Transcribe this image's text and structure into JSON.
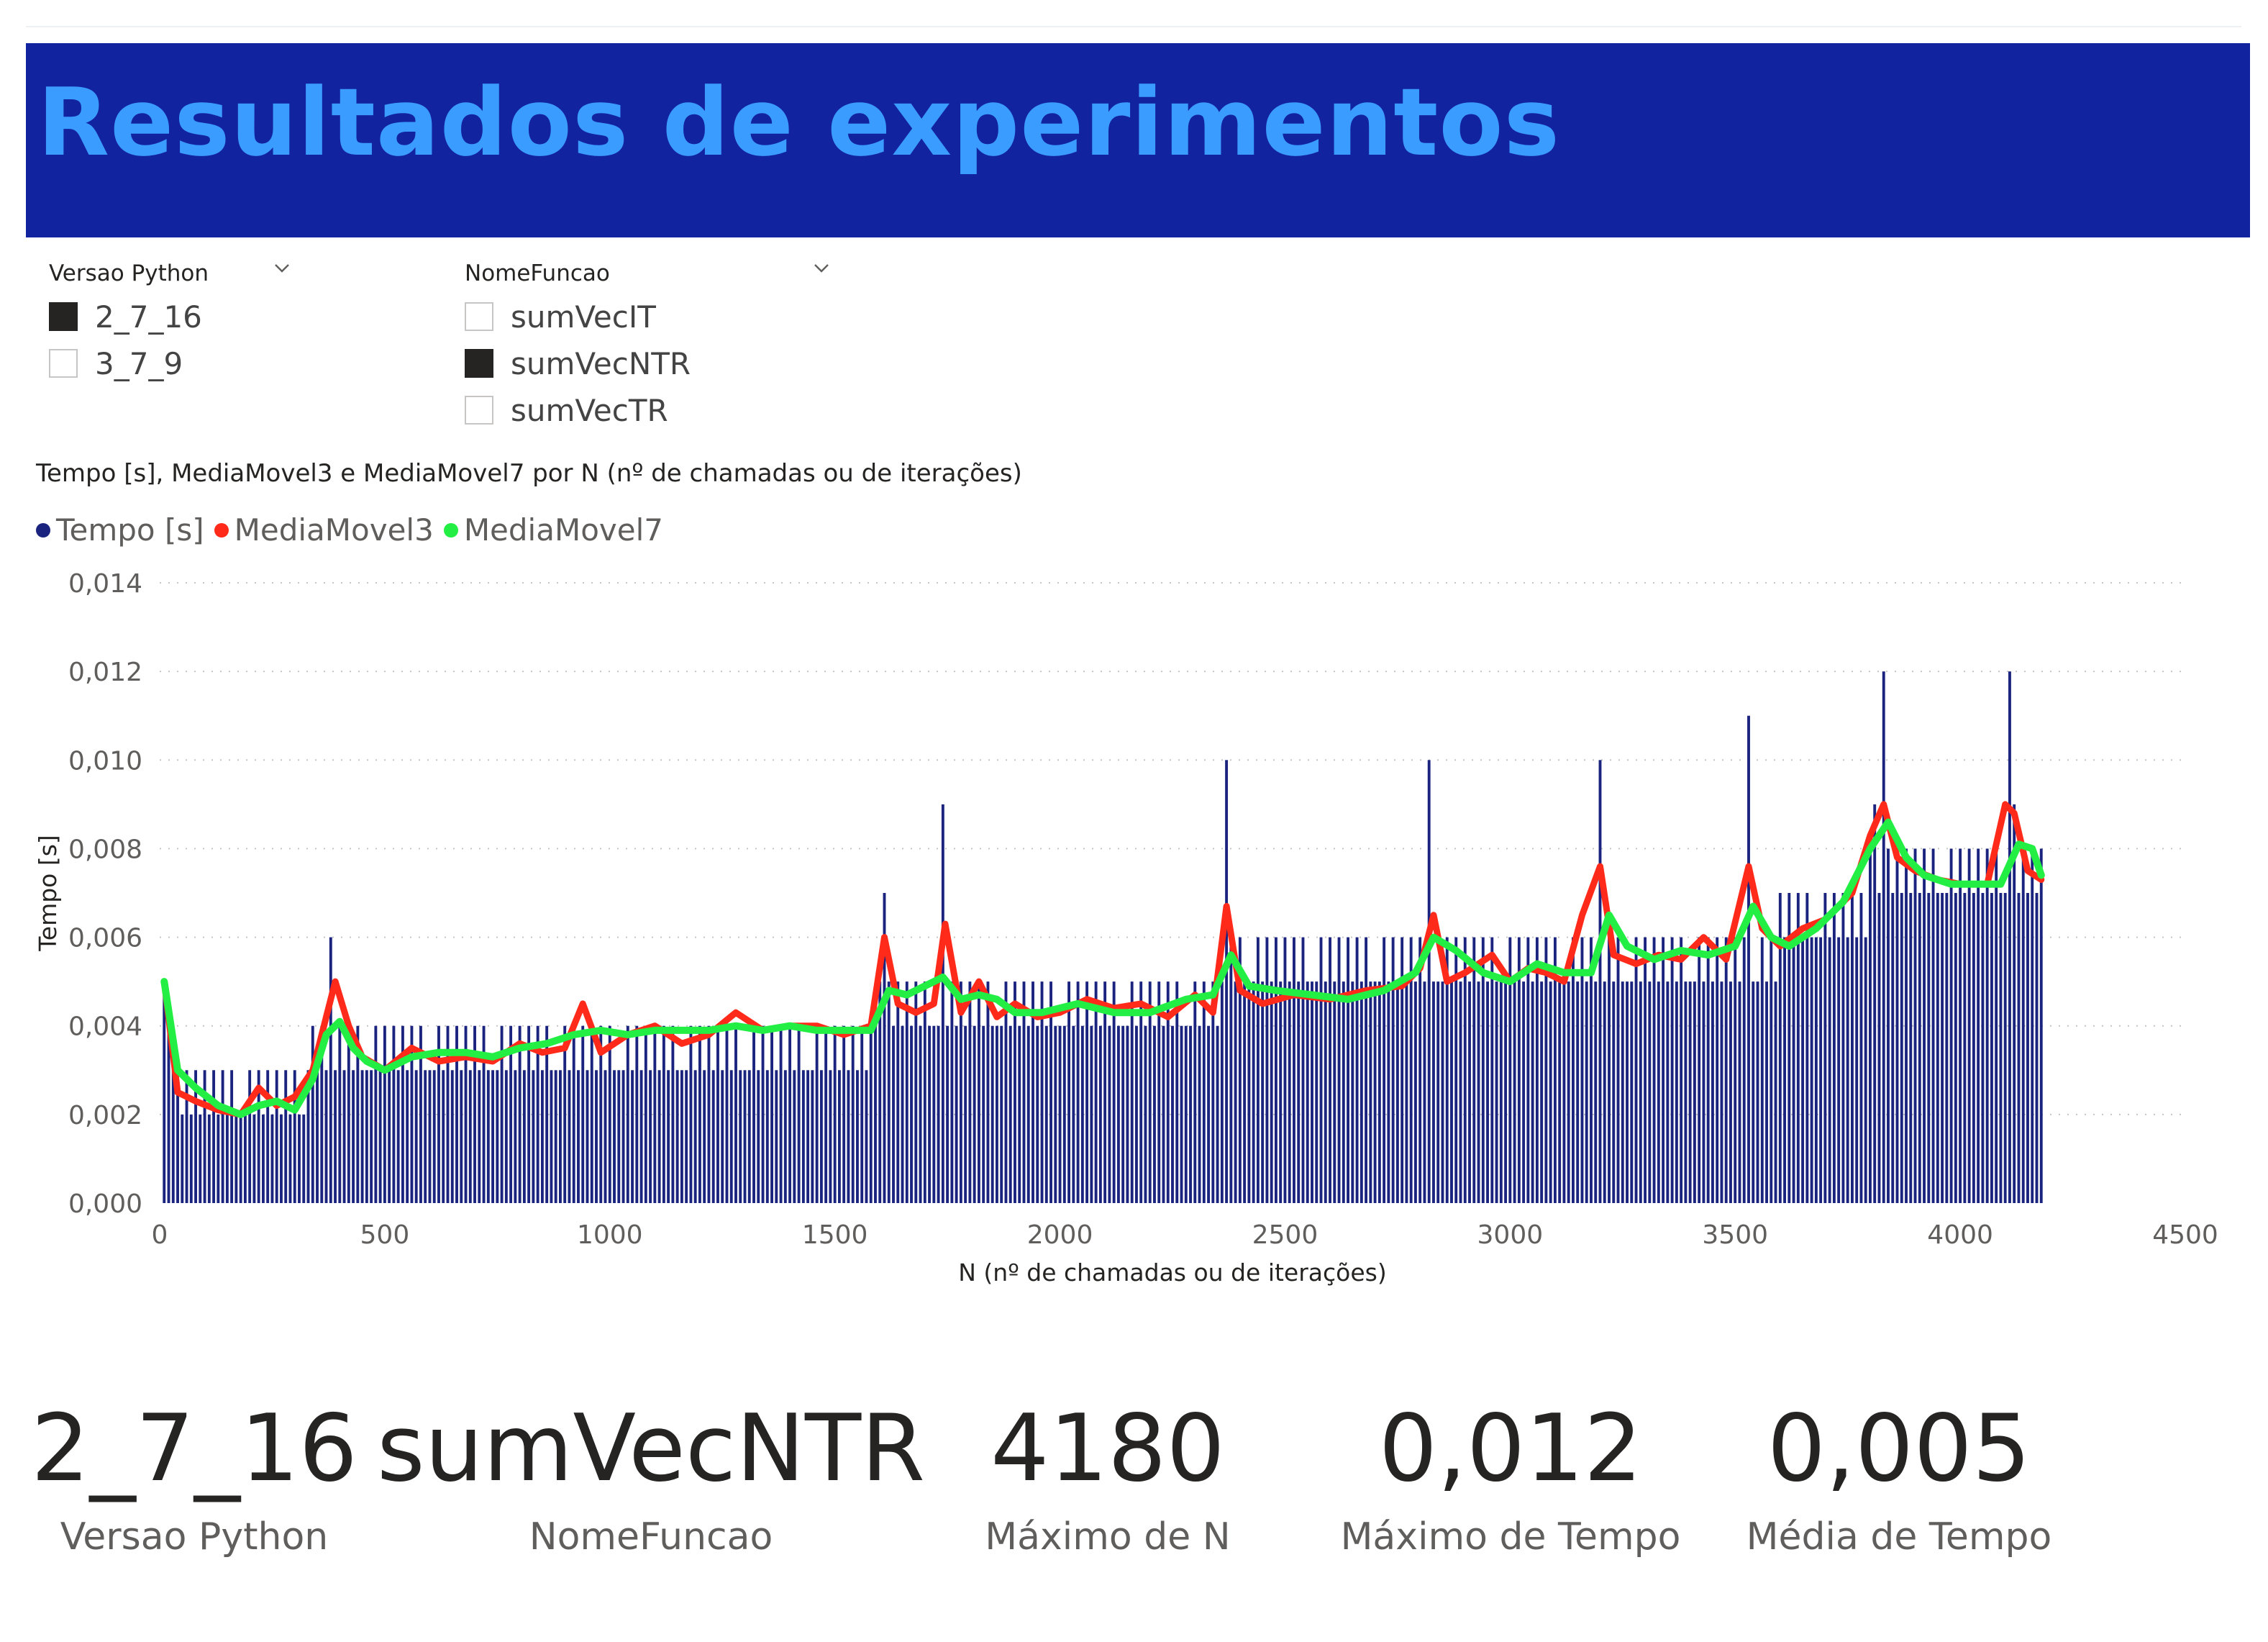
{
  "header": {
    "title": "Resultados de experimentos"
  },
  "slicers": {
    "versao": {
      "label": "Versao Python",
      "options": [
        {
          "label": "2_7_16",
          "checked": true
        },
        {
          "label": "3_7_9",
          "checked": false
        }
      ]
    },
    "funcao": {
      "label": "NomeFuncao",
      "options": [
        {
          "label": "sumVecIT",
          "checked": false
        },
        {
          "label": "sumVecNTR",
          "checked": true
        },
        {
          "label": "sumVecTR",
          "checked": false
        }
      ]
    }
  },
  "chart": {
    "title": "Tempo [s], MediaMovel3 e MediaMovel7 por N (nº de chamadas ou de iterações)",
    "legend": [
      {
        "label": "Tempo [s]",
        "color": "#1a237e"
      },
      {
        "label": "MediaMovel3",
        "color": "#ff2a1a"
      },
      {
        "label": "MediaMovel7",
        "color": "#22ee44"
      }
    ]
  },
  "chart_data": {
    "type": "bar",
    "title": "Tempo [s], MediaMovel3 e MediaMovel7 por N (nº de chamadas ou de iterações)",
    "xlabel": "N (nº de chamadas ou de iterações)",
    "ylabel": "Tempo [s]",
    "xlim": [
      0,
      4500
    ],
    "ylim": [
      0,
      0.014
    ],
    "x_ticks": [
      0,
      500,
      1000,
      1500,
      2000,
      2500,
      3000,
      3500,
      4000,
      4500
    ],
    "x_tick_labels": [
      "0",
      "500",
      "1000",
      "1500",
      "2000",
      "2500",
      "3000",
      "3500",
      "4000",
      "4500"
    ],
    "y_ticks": [
      0,
      0.002,
      0.004,
      0.006,
      0.008,
      0.01,
      0.012,
      0.014
    ],
    "y_tick_labels": [
      "0,000",
      "0,002",
      "0,004",
      "0,006",
      "0,008",
      "0,010",
      "0,012",
      "0,014"
    ],
    "grid": true,
    "legend_position": "top-left",
    "bars": {
      "name": "Tempo [s]",
      "color": "#1a237e",
      "x_start": 10,
      "x_step": 10,
      "count": 418,
      "baseline": [
        [
          10,
          0.003
        ],
        [
          50,
          0.002
        ],
        [
          300,
          0.002
        ],
        [
          330,
          0.003
        ],
        [
          1580,
          0.004
        ],
        [
          2350,
          0.004
        ],
        [
          2380,
          0.005
        ],
        [
          3550,
          0.005
        ],
        [
          3600,
          0.006
        ],
        [
          3800,
          0.007
        ],
        [
          4180,
          0.007
        ]
      ],
      "alternate_high": 0.001,
      "spikes": [
        [
          10,
          0.005
        ],
        [
          380,
          0.006
        ],
        [
          1610,
          0.007
        ],
        [
          1740,
          0.009
        ],
        [
          2370,
          0.01
        ],
        [
          2820,
          0.01
        ],
        [
          3200,
          0.01
        ],
        [
          3530,
          0.011
        ],
        [
          3830,
          0.012
        ],
        [
          4110,
          0.012
        ],
        [
          3810,
          0.009
        ],
        [
          4120,
          0.009
        ]
      ]
    },
    "series": [
      {
        "name": "MediaMovel3",
        "color": "#ff2a1a",
        "x": [
          10,
          40,
          80,
          130,
          180,
          220,
          260,
          300,
          340,
          370,
          390,
          420,
          450,
          500,
          560,
          620,
          680,
          740,
          800,
          850,
          900,
          940,
          980,
          1040,
          1100,
          1160,
          1220,
          1280,
          1340,
          1400,
          1460,
          1520,
          1580,
          1610,
          1640,
          1680,
          1720,
          1745,
          1780,
          1820,
          1860,
          1900,
          1950,
          2000,
          2060,
          2120,
          2180,
          2240,
          2300,
          2340,
          2370,
          2400,
          2450,
          2520,
          2600,
          2680,
          2760,
          2800,
          2830,
          2860,
          2900,
          2960,
          3000,
          3040,
          3080,
          3120,
          3160,
          3200,
          3230,
          3280,
          3330,
          3380,
          3430,
          3480,
          3530,
          3560,
          3600,
          3650,
          3700,
          3760,
          3800,
          3830,
          3860,
          3900,
          3950,
          4000,
          4060,
          4100,
          4120,
          4150,
          4180
        ],
        "y": [
          0.005,
          0.0025,
          0.0023,
          0.0021,
          0.002,
          0.0026,
          0.0022,
          0.0024,
          0.003,
          0.0042,
          0.005,
          0.004,
          0.0033,
          0.003,
          0.0035,
          0.0032,
          0.0033,
          0.0032,
          0.0036,
          0.0034,
          0.0035,
          0.0045,
          0.0034,
          0.0038,
          0.004,
          0.0036,
          0.0038,
          0.0043,
          0.0039,
          0.004,
          0.004,
          0.0038,
          0.004,
          0.006,
          0.0045,
          0.0043,
          0.0045,
          0.0063,
          0.0043,
          0.005,
          0.0042,
          0.0045,
          0.0042,
          0.0043,
          0.0046,
          0.0044,
          0.0045,
          0.0042,
          0.0047,
          0.0043,
          0.0067,
          0.0048,
          0.0045,
          0.0047,
          0.0046,
          0.0048,
          0.0049,
          0.0053,
          0.0065,
          0.005,
          0.0052,
          0.0056,
          0.005,
          0.0053,
          0.0052,
          0.005,
          0.0065,
          0.0076,
          0.0056,
          0.0054,
          0.0056,
          0.0055,
          0.006,
          0.0055,
          0.0076,
          0.0062,
          0.0058,
          0.0062,
          0.0064,
          0.007,
          0.0083,
          0.009,
          0.0078,
          0.0075,
          0.0073,
          0.0072,
          0.0072,
          0.009,
          0.0088,
          0.0075,
          0.0073
        ]
      },
      {
        "name": "MediaMovel7",
        "color": "#22ee44",
        "x": [
          10,
          40,
          80,
          130,
          180,
          220,
          260,
          300,
          340,
          370,
          400,
          430,
          460,
          500,
          560,
          620,
          680,
          740,
          800,
          860,
          920,
          980,
          1040,
          1100,
          1160,
          1220,
          1280,
          1340,
          1400,
          1460,
          1520,
          1580,
          1620,
          1660,
          1700,
          1740,
          1780,
          1820,
          1860,
          1900,
          1960,
          2040,
          2120,
          2200,
          2280,
          2340,
          2380,
          2420,
          2480,
          2560,
          2640,
          2720,
          2790,
          2830,
          2880,
          2940,
          3000,
          3060,
          3120,
          3180,
          3220,
          3260,
          3320,
          3380,
          3440,
          3500,
          3540,
          3580,
          3620,
          3680,
          3740,
          3800,
          3840,
          3880,
          3920,
          3980,
          4040,
          4090,
          4130,
          4160,
          4180
        ],
        "y": [
          0.005,
          0.003,
          0.0026,
          0.0022,
          0.002,
          0.0022,
          0.0023,
          0.0021,
          0.0028,
          0.0038,
          0.0041,
          0.0035,
          0.0032,
          0.003,
          0.0033,
          0.0034,
          0.0034,
          0.0033,
          0.0035,
          0.0036,
          0.0038,
          0.0039,
          0.0038,
          0.0039,
          0.0039,
          0.0039,
          0.004,
          0.0039,
          0.004,
          0.0039,
          0.0039,
          0.0039,
          0.0048,
          0.0047,
          0.0049,
          0.0051,
          0.0046,
          0.0047,
          0.0046,
          0.0043,
          0.0043,
          0.0045,
          0.0043,
          0.0043,
          0.0046,
          0.0047,
          0.0056,
          0.0049,
          0.0048,
          0.0047,
          0.0046,
          0.0048,
          0.0052,
          0.006,
          0.0057,
          0.0052,
          0.005,
          0.0054,
          0.0052,
          0.0052,
          0.0065,
          0.0058,
          0.0055,
          0.0057,
          0.0056,
          0.0058,
          0.0067,
          0.006,
          0.0058,
          0.0062,
          0.0068,
          0.008,
          0.0086,
          0.0078,
          0.0074,
          0.0072,
          0.0072,
          0.0072,
          0.0081,
          0.008,
          0.0074
        ]
      }
    ]
  },
  "kpis": [
    {
      "value": "2_7_16",
      "caption": "Versao Python"
    },
    {
      "value": "sumVecNTR",
      "caption": "NomeFuncao"
    },
    {
      "value": "4180",
      "caption": "Máximo de N"
    },
    {
      "value": "0,012",
      "caption": "Máximo de Tempo"
    },
    {
      "value": "0,005",
      "caption": "Média de Tempo"
    }
  ]
}
